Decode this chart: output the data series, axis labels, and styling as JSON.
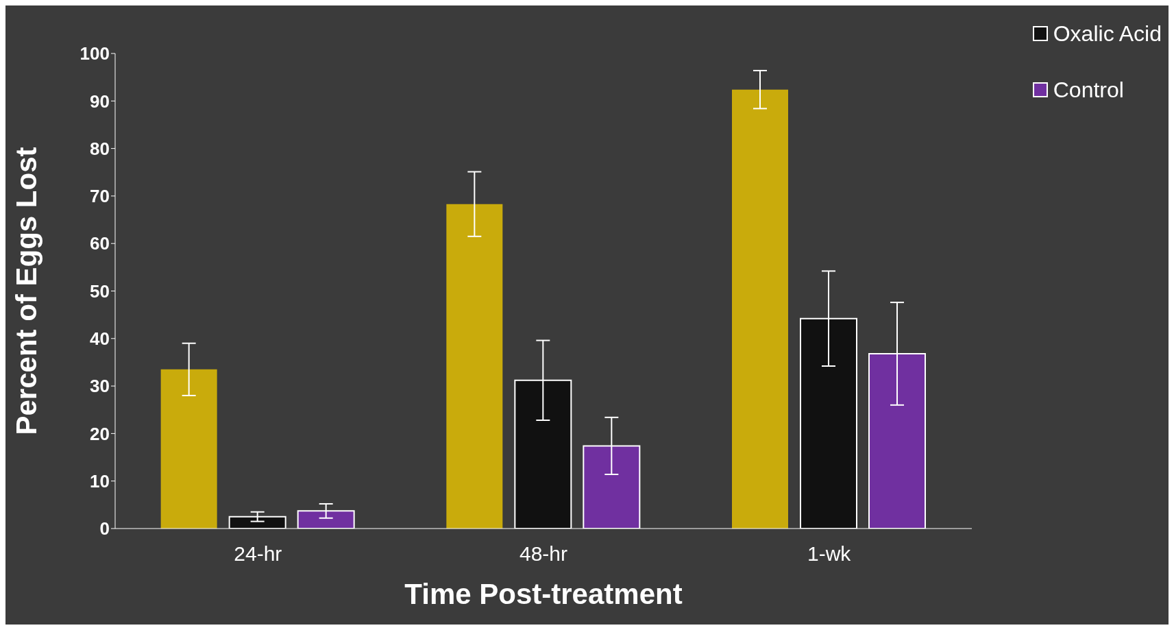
{
  "chart_data": {
    "type": "bar",
    "xlabel": "Time Post-treatment",
    "ylabel": "Percent of Eggs Lost",
    "categories": [
      "24-hr",
      "48-hr",
      "1-wk"
    ],
    "series": [
      {
        "color": "#c9ab0c",
        "values": [
          33.5,
          68.3,
          92.4
        ],
        "errors": [
          5.5,
          6.8,
          4
        ]
      },
      {
        "name": "Oxalic Acid",
        "color": "#111111",
        "values": [
          2.5,
          31.2,
          44.2
        ],
        "errors": [
          1,
          8.4,
          10
        ]
      },
      {
        "name": "Control",
        "color": "#7030a0",
        "values": [
          3.7,
          17.4,
          36.8
        ],
        "errors": [
          1.5,
          6,
          10.8
        ]
      }
    ],
    "ylim": [
      0,
      100
    ],
    "yticks": [
      0,
      10,
      20,
      30,
      40,
      50,
      60,
      70,
      80,
      90,
      100
    ],
    "grid": false,
    "legend": "top right"
  }
}
